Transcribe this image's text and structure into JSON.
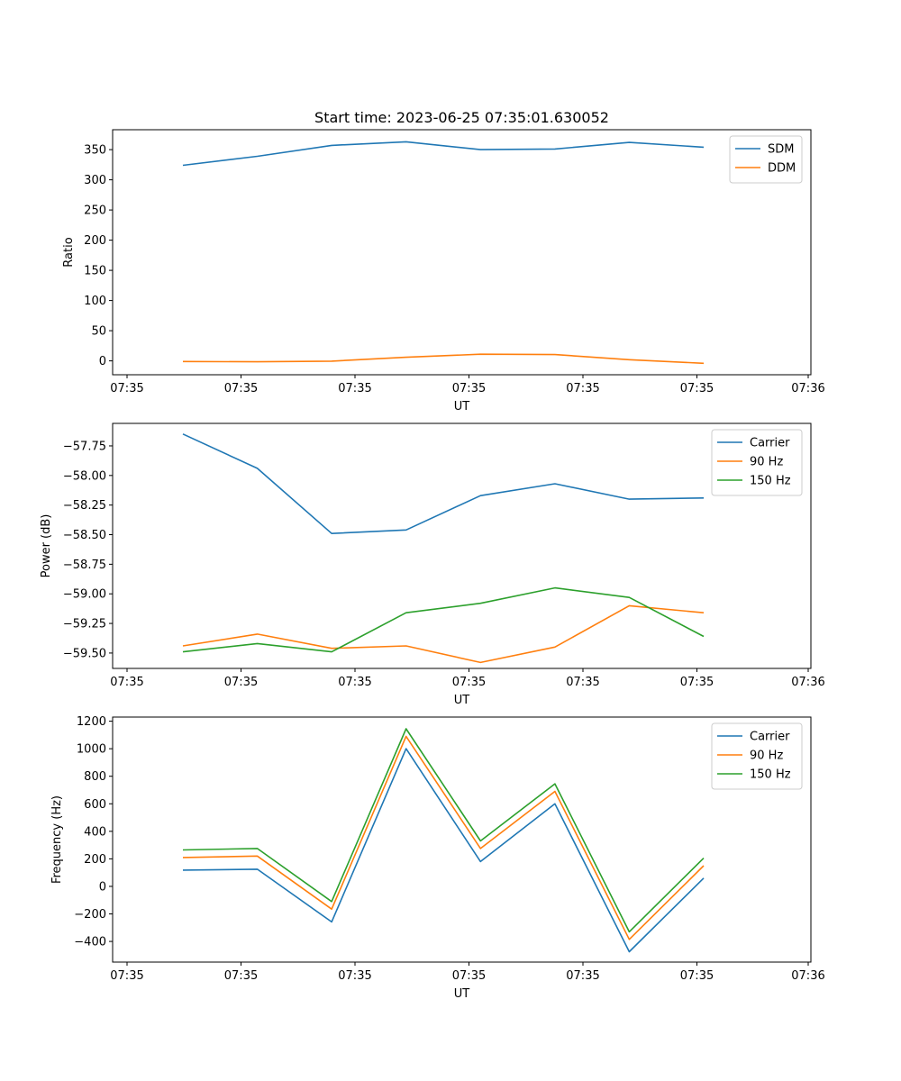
{
  "chart_data": [
    {
      "type": "line",
      "title": "Start time: 2023-06-25 07:35:01.630052",
      "xlabel": "UT",
      "ylabel": "Ratio",
      "x_tick_labels": [
        "07:35",
        "07:35",
        "07:35",
        "07:35",
        "07:35",
        "07:35",
        "07:36"
      ],
      "x": [
        0,
        1,
        2,
        3,
        4,
        5,
        6,
        7
      ],
      "y_ticks": [
        0,
        50,
        100,
        150,
        200,
        250,
        300,
        350
      ],
      "y_tick_labels": [
        "0",
        "50",
        "100",
        "150",
        "200",
        "250",
        "300",
        "350"
      ],
      "ylim": [
        -23,
        383
      ],
      "grid": false,
      "legend": "top-right",
      "series": [
        {
          "name": "SDM",
          "color": "#1f77b4",
          "values": [
            324,
            339,
            357,
            363,
            350,
            351,
            362,
            354
          ]
        },
        {
          "name": "DDM",
          "color": "#ff7f0e",
          "values": [
            -1,
            -1.5,
            -0.5,
            6,
            11,
            10.5,
            2,
            -4
          ]
        }
      ]
    },
    {
      "type": "line",
      "title": "",
      "xlabel": "UT",
      "ylabel": "Power (dB)",
      "x_tick_labels": [
        "07:35",
        "07:35",
        "07:35",
        "07:35",
        "07:35",
        "07:35",
        "07:36"
      ],
      "x": [
        0,
        1,
        2,
        3,
        4,
        5,
        6,
        7
      ],
      "y_ticks": [
        -57.75,
        -58.0,
        -58.25,
        -58.5,
        -58.75,
        -59.0,
        -59.25,
        -59.5
      ],
      "y_tick_labels": [
        "−57.75",
        "−58.00",
        "−58.25",
        "−58.50",
        "−58.75",
        "−59.00",
        "−59.25",
        "−59.50"
      ],
      "ylim": [
        -59.63,
        -57.56
      ],
      "grid": false,
      "legend": "top-right",
      "series": [
        {
          "name": "Carrier",
          "color": "#1f77b4",
          "values": [
            -57.65,
            -57.94,
            -58.49,
            -58.46,
            -58.17,
            -58.07,
            -58.2,
            -58.19
          ]
        },
        {
          "name": "90 Hz",
          "color": "#ff7f0e",
          "values": [
            -59.44,
            -59.34,
            -59.46,
            -59.44,
            -59.58,
            -59.45,
            -59.1,
            -59.16
          ]
        },
        {
          "name": "150 Hz",
          "color": "#2ca02c",
          "values": [
            -59.49,
            -59.42,
            -59.49,
            -59.16,
            -59.08,
            -58.95,
            -59.03,
            -59.36
          ]
        }
      ]
    },
    {
      "type": "line",
      "title": "",
      "xlabel": "UT",
      "ylabel": "Frequency (Hz)",
      "x_tick_labels": [
        "07:35",
        "07:35",
        "07:35",
        "07:35",
        "07:35",
        "07:35",
        "07:36"
      ],
      "x": [
        0,
        1,
        2,
        3,
        4,
        5,
        6,
        7
      ],
      "y_ticks": [
        -400,
        -200,
        0,
        200,
        400,
        600,
        800,
        1000,
        1200
      ],
      "y_tick_labels": [
        "−400",
        "−200",
        "0",
        "200",
        "400",
        "600",
        "800",
        "1000",
        "1200"
      ],
      "ylim": [
        -550,
        1230
      ],
      "grid": false,
      "legend": "top-right",
      "series": [
        {
          "name": "Carrier",
          "color": "#1f77b4",
          "values": [
            118,
            125,
            -258,
            1000,
            180,
            600,
            -475,
            60
          ]
        },
        {
          "name": "90 Hz",
          "color": "#ff7f0e",
          "values": [
            210,
            220,
            -165,
            1090,
            275,
            690,
            -385,
            150
          ]
        },
        {
          "name": "150 Hz",
          "color": "#2ca02c",
          "values": [
            265,
            275,
            -110,
            1145,
            330,
            745,
            -330,
            205
          ]
        }
      ]
    }
  ]
}
